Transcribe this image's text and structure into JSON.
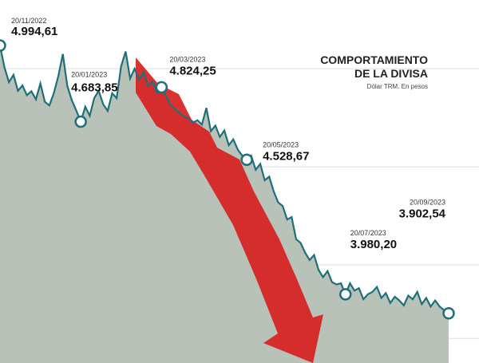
{
  "chart_data": {
    "type": "line",
    "title": "COMPORTAMIENTO DE LA DIVISA",
    "title_lines": [
      "COMPORTAMIENTO",
      "DE LA DIVISA"
    ],
    "subtitle": "Dólar TRM. En pesos",
    "xlabel": "",
    "ylabel": "",
    "ylim": [
      3700,
      5050
    ],
    "grid": true,
    "colors": {
      "area": "#b9c2b8",
      "line": "#1f6f7a",
      "marker_fill": "#ffffff",
      "marker_stroke": "#1f6f7a",
      "arrow": "#d7211f",
      "grid": "#d8dde2",
      "label": "#111111"
    },
    "annotations": [
      {
        "date": "20/11/2022",
        "value": 4994.61,
        "value_label": "4.994,61"
      },
      {
        "date": "20/01/2023",
        "value": 4683.85,
        "value_label": "4.683,85"
      },
      {
        "date": "20/03/2023",
        "value": 4824.25,
        "value_label": "4.824,25"
      },
      {
        "date": "20/05/2023",
        "value": 4528.67,
        "value_label": "4.528,67"
      },
      {
        "date": "20/07/2023",
        "value": 3980.2,
        "value_label": "3.980,20"
      },
      {
        "date": "20/09/2023",
        "value": 3902.54,
        "value_label": "3.902,54"
      }
    ],
    "series": [
      {
        "x": [
          0,
          1,
          2,
          3,
          4,
          5,
          6,
          7,
          8,
          9,
          10,
          11,
          12,
          13,
          14,
          15,
          16,
          17,
          18,
          19,
          20,
          21,
          22,
          23,
          24,
          25,
          26,
          27,
          28,
          29,
          30,
          31,
          32,
          33,
          34,
          35,
          36,
          37,
          38,
          39,
          40,
          41,
          42,
          43,
          44,
          45,
          46,
          47,
          48,
          49,
          50,
          51,
          52,
          53,
          54,
          55,
          56,
          57,
          58,
          59,
          60,
          61,
          62,
          63,
          64,
          65,
          66,
          67,
          68,
          69,
          70,
          71,
          72,
          73,
          74,
          75,
          76,
          77,
          78,
          79,
          80,
          81,
          82,
          83,
          84,
          85,
          86,
          87,
          88,
          89,
          90,
          91,
          92,
          93,
          94,
          95,
          96,
          97,
          98,
          99,
          100
        ],
        "values": [
          4994.61,
          4905,
          4845,
          4875,
          4810,
          4832,
          4792,
          4808,
          4775,
          4840,
          4765,
          4750,
          4800,
          4870,
          4960,
          4830,
          4772,
          4730,
          4683.85,
          4745,
          4708,
          4780,
          4810,
          4755,
          4728,
          4800,
          4780,
          4910,
          4970,
          4860,
          4900,
          4855,
          4885,
          4830,
          4848,
          4802,
          4824.25,
          4790,
          4752,
          4735,
          4720,
          4705,
          4698,
          4680,
          4690,
          4672,
          4740,
          4645,
          4668,
          4622,
          4648,
          4588,
          4612,
          4570,
          4545,
          4528.67,
          4545,
          4488,
          4512,
          4445,
          4460,
          4400,
          4355,
          4340,
          4285,
          4295,
          4205,
          4190,
          4150,
          4120,
          4140,
          4080,
          4050,
          4075,
          4030,
          4020,
          4025,
          3980.2,
          4025,
          3995,
          4005,
          3960,
          3980,
          3990,
          4010,
          3965,
          3985,
          3945,
          3970,
          3955,
          3935,
          3975,
          3960,
          3990,
          3940,
          3965,
          3930,
          3955,
          3930,
          3915,
          3902.54
        ]
      }
    ]
  }
}
